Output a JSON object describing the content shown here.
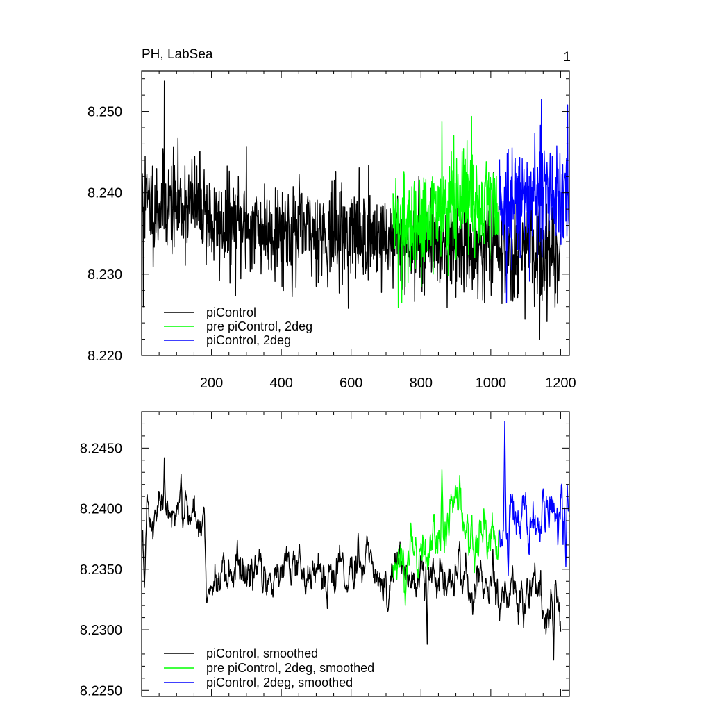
{
  "figure": {
    "title_left": "PH, LabSea",
    "title_right": "1"
  },
  "chart_data": [
    {
      "type": "line",
      "title": "PH, LabSea",
      "xlabel": "",
      "ylabel": "",
      "xlim": [
        0,
        1225
      ],
      "ylim": [
        8.22,
        8.255
      ],
      "x_ticks": [
        200,
        400,
        600,
        800,
        1000,
        1200
      ],
      "x_tick_labels": [
        "200",
        "400",
        "600",
        "800",
        "1000",
        "1200"
      ],
      "y_ticks": [
        8.22,
        8.23,
        8.24,
        8.25
      ],
      "y_tick_labels": [
        "8.220",
        "8.230",
        "8.240",
        "8.250"
      ],
      "grid": false,
      "legend_position": "bottom-left",
      "series": [
        {
          "name": "piControl",
          "color": "#000000",
          "x_range": [
            1,
            1200
          ],
          "mean_profile": [
            [
              0,
              8.2385
            ],
            [
              180,
              8.2385
            ],
            [
              200,
              8.236
            ],
            [
              700,
              8.2345
            ],
            [
              1200,
              8.2325
            ]
          ],
          "noise_sd": 0.003,
          "extremes": [
            [
              5,
              8.226
            ],
            [
              10,
              8.2445
            ],
            [
              65,
              8.2538
            ],
            [
              300,
              8.2457
            ],
            [
              1140,
              8.222
            ]
          ]
        },
        {
          "name": "pre piControl, 2deg",
          "color": "#00ff00",
          "x_range": [
            720,
            1025
          ],
          "mean_profile": [
            [
              720,
              8.235
            ],
            [
              900,
              8.2385
            ],
            [
              1025,
              8.239
            ]
          ],
          "noise_sd": 0.0035,
          "extremes": [
            [
              745,
              8.2265
            ],
            [
              860,
              8.2488
            ],
            [
              945,
              8.2494
            ]
          ]
        },
        {
          "name": "piControl, 2deg",
          "color": "#0000ff",
          "x_range": [
            1025,
            1225
          ],
          "mean_profile": [
            [
              1025,
              8.2395
            ],
            [
              1225,
              8.2395
            ]
          ],
          "noise_sd": 0.0035,
          "extremes": [
            [
              1045,
              8.2265
            ],
            [
              1145,
              8.2515
            ],
            [
              1220,
              8.2508
            ]
          ]
        }
      ]
    },
    {
      "type": "line",
      "title": "",
      "xlabel": "",
      "ylabel": "",
      "xlim": [
        0,
        1225
      ],
      "ylim": [
        8.2245,
        8.248
      ],
      "x_ticks": [
        200,
        400,
        600,
        800,
        1000,
        1200
      ],
      "x_tick_labels": [],
      "y_ticks": [
        8.225,
        8.23,
        8.235,
        8.24,
        8.245
      ],
      "y_tick_labels": [
        "8.2250",
        "8.2300",
        "8.2350",
        "8.2400",
        "8.2450"
      ],
      "grid": false,
      "legend_position": "bottom-left",
      "series": [
        {
          "name": "piControl, smoothed",
          "color": "#000000",
          "x_range": [
            1,
            1200
          ],
          "mean_profile": [
            [
              0,
              8.2365
            ],
            [
              60,
              8.2395
            ],
            [
              180,
              8.2395
            ],
            [
              185,
              8.2335
            ],
            [
              400,
              8.235
            ],
            [
              700,
              8.235
            ],
            [
              1000,
              8.2335
            ],
            [
              1200,
              8.232
            ]
          ],
          "noise_sd": 0.0011,
          "extremes": [
            [
              8,
              8.2335
            ],
            [
              65,
              8.2442
            ],
            [
              818,
              8.2288
            ],
            [
              1180,
              8.2275
            ]
          ]
        },
        {
          "name": "pre piControl, 2deg, smoothed",
          "color": "#00ff00",
          "x_range": [
            720,
            1025
          ],
          "mean_profile": [
            [
              720,
              8.2345
            ],
            [
              800,
              8.2365
            ],
            [
              900,
              8.2395
            ],
            [
              1025,
              8.2375
            ]
          ],
          "noise_sd": 0.0012,
          "extremes": [
            [
              755,
              8.232
            ],
            [
              860,
              8.2432
            ]
          ]
        },
        {
          "name": "piControl, 2deg, smoothed",
          "color": "#0000ff",
          "x_range": [
            1025,
            1225
          ],
          "mean_profile": [
            [
              1025,
              8.2385
            ],
            [
              1225,
              8.239
            ]
          ],
          "noise_sd": 0.0012,
          "extremes": [
            [
              1040,
              8.2472
            ],
            [
              1050,
              8.2345
            ],
            [
              1215,
              8.2352
            ]
          ]
        }
      ]
    }
  ]
}
